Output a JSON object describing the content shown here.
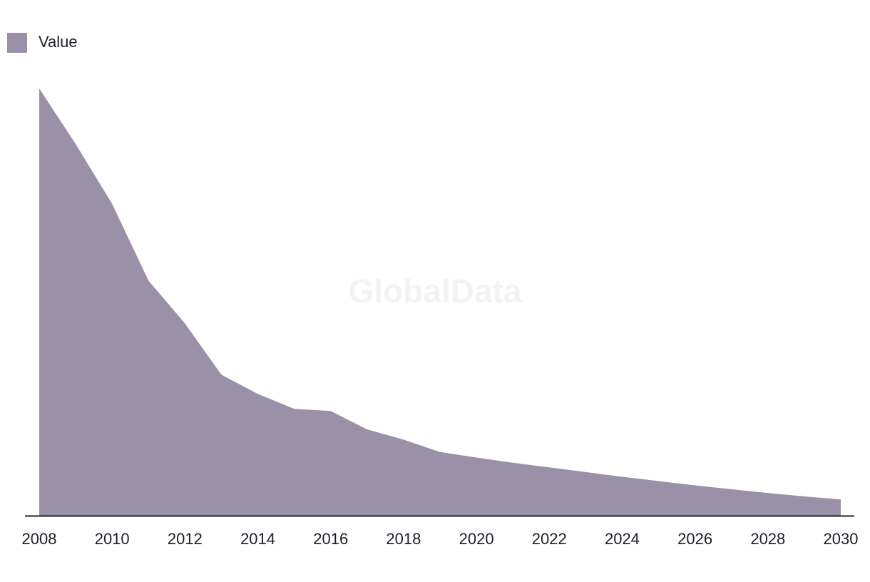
{
  "chart_data": {
    "type": "area",
    "x": [
      2008,
      2009,
      2010,
      2011,
      2012,
      2013,
      2014,
      2015,
      2016,
      2017,
      2018,
      2019,
      2020,
      2021,
      2022,
      2023,
      2024,
      2025,
      2026,
      2027,
      2028,
      2029,
      2030
    ],
    "series": [
      {
        "name": "Value",
        "color": "#9a91a9",
        "values": [
          100,
          87,
          73,
          55,
          45,
          33,
          28.5,
          25,
          24.5,
          20.2,
          17.8,
          14.9,
          13.6,
          12.4,
          11.3,
          10.2,
          9.1,
          8.1,
          7.1,
          6.2,
          5.3,
          4.5,
          3.8
        ]
      }
    ],
    "xticks": [
      "2008",
      "2010",
      "2012",
      "2014",
      "2016",
      "2018",
      "2020",
      "2022",
      "2024",
      "2026",
      "2028",
      "2030"
    ],
    "ylim": [
      0,
      100
    ],
    "grid": false,
    "legend_position": "top-left",
    "title": "",
    "xlabel": "",
    "ylabel": ""
  },
  "watermark": "GlobalData"
}
